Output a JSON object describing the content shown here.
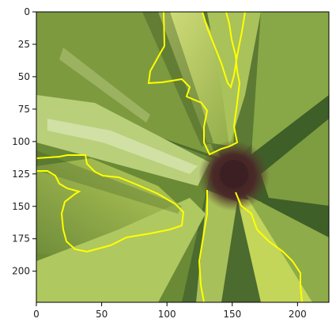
{
  "figure": {
    "background": "#ffffff",
    "axis_color": "#000000",
    "contour_color": "#ffff00"
  },
  "image": {
    "description_key": "pineapple-crown-top-view",
    "palette": {
      "leaf_light": "#c3d65a",
      "leaf_mid": "#93a94a",
      "leaf_dark": "#4c6b2f",
      "leaf_shadow": "#2f4a20",
      "center": "#4a2a28",
      "highlight": "#e6eec8"
    }
  },
  "axes": {
    "x_ticks": [
      "0",
      "50",
      "100",
      "150",
      "200"
    ],
    "y_ticks": [
      "0",
      "25",
      "50",
      "75",
      "100",
      "125",
      "150",
      "175",
      "200"
    ],
    "x_range": [
      0,
      224
    ],
    "y_range": [
      0,
      224
    ]
  }
}
